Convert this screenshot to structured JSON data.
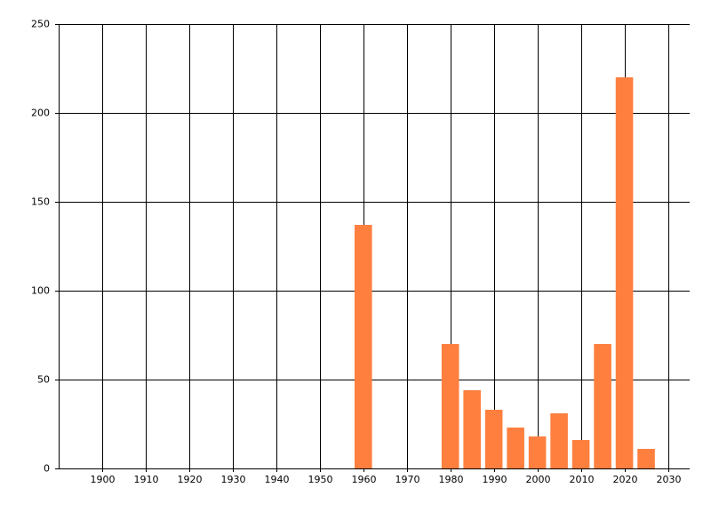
{
  "chart_data": {
    "type": "bar",
    "x": [
      1960,
      1980,
      1985,
      1990,
      1995,
      2000,
      2005,
      2010,
      2015,
      2020,
      2025
    ],
    "values": [
      137,
      70,
      44,
      33,
      23,
      18,
      31,
      16,
      70,
      220,
      11
    ],
    "color": "#ff7f3f",
    "xlim": [
      1890,
      2035
    ],
    "xticks": [
      1900,
      1910,
      1920,
      1930,
      1940,
      1950,
      1960,
      1970,
      1980,
      1990,
      2000,
      2010,
      2020,
      2030
    ],
    "ylim": [
      0,
      250
    ],
    "yticks": [
      0,
      50,
      100,
      150,
      200,
      250
    ],
    "grid": true
  }
}
